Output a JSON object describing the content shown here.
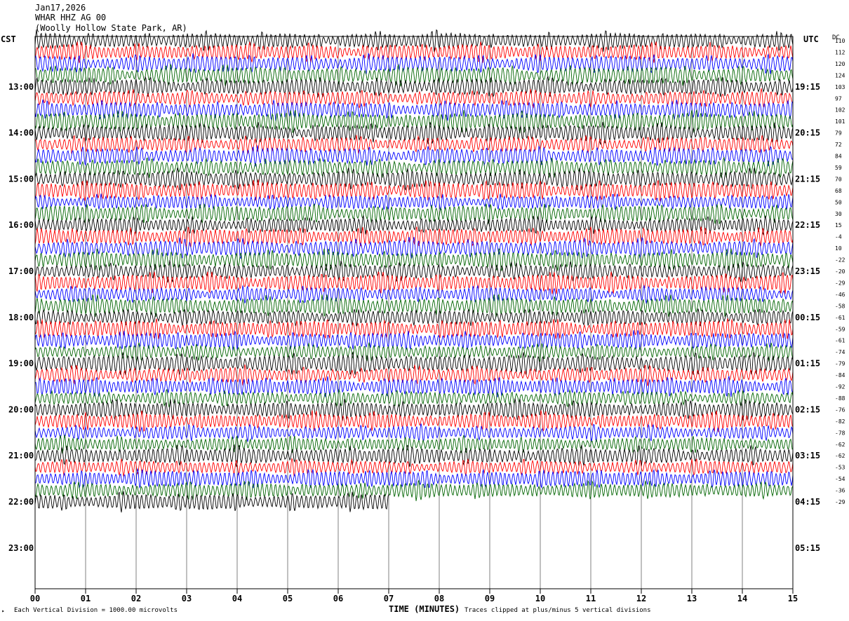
{
  "header": {
    "date": "Jan17,2026",
    "station": "WHAR HHZ AG 00",
    "location": "(Woolly Hollow State Park, AR)"
  },
  "left_tz": "CST",
  "right_tz": "UTC",
  "dc_header": "DC",
  "footer": {
    "scale": "Each Vertical Division = 1000.00 microvolts",
    "clip": "Traces clipped at plus/minus 5 vertical divisions",
    "corner": "‣"
  },
  "chart_data": {
    "type": "line",
    "title": "",
    "xlabel": "TIME (MINUTES)",
    "ylabel": "",
    "xlim": [
      0,
      15
    ],
    "x_ticks": [
      "00",
      "01",
      "02",
      "03",
      "04",
      "05",
      "06",
      "07",
      "08",
      "09",
      "10",
      "11",
      "12",
      "13",
      "14",
      "15"
    ],
    "left_time_labels": [
      "13:00",
      "14:00",
      "15:00",
      "16:00",
      "17:00",
      "18:00",
      "19:00",
      "20:00",
      "21:00",
      "22:00",
      "23:00"
    ],
    "right_time_labels": [
      "19:15",
      "20:15",
      "21:15",
      "22:15",
      "23:15",
      "00:15",
      "01:15",
      "02:15",
      "03:15",
      "04:15",
      "05:15"
    ],
    "trace_colors": [
      "#000000",
      "#ff0000",
      "#0000ff",
      "#006400"
    ],
    "dc_offsets": [
      110,
      112,
      120,
      124,
      103,
      97,
      102,
      101,
      79,
      72,
      84,
      59,
      70,
      68,
      50,
      30,
      15,
      -4,
      10,
      -22,
      -20,
      -29,
      -46,
      -58,
      -61,
      -59,
      -61,
      -74,
      -79,
      -84,
      -92,
      -88,
      -76,
      -82,
      -78,
      -62,
      -62,
      -53,
      -54,
      -36,
      -29
    ],
    "trace_count": 41,
    "last_trace_end_minute": 7.0
  }
}
